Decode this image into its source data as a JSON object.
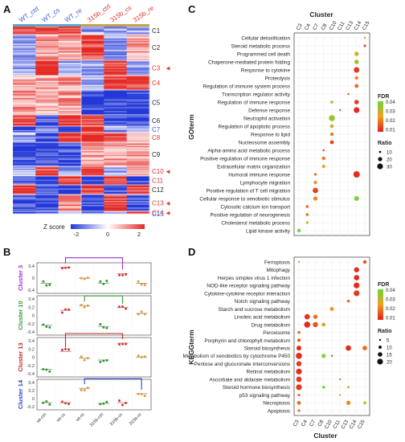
{
  "panels": {
    "A": {
      "letter": "A",
      "samples": [
        {
          "label": "WT_ctrl",
          "color": "#3b56d6"
        },
        {
          "label": "WT_cs",
          "color": "#3b56d6"
        },
        {
          "label": "WT_re",
          "color": "#3b56d6"
        },
        {
          "label": "315b_ctrl",
          "color": "#e5322d"
        },
        {
          "label": "315b_cs",
          "color": "#e5322d"
        },
        {
          "label": "315b_re",
          "color": "#e5322d"
        }
      ],
      "clusters": [
        {
          "label": "C1",
          "color": "#222222"
        },
        {
          "label": "C2",
          "color": "#222222"
        },
        {
          "label": "C3",
          "color": "#e5322d"
        },
        {
          "label": "C4",
          "color": "#e5322d"
        },
        {
          "label": "C5",
          "color": "#222222"
        },
        {
          "label": "C6",
          "color": "#222222"
        },
        {
          "label": "C7",
          "color": "#3b56d6"
        },
        {
          "label": "C8",
          "color": "#e5322d"
        },
        {
          "label": "C9",
          "color": "#222222"
        },
        {
          "label": "C10",
          "color": "#e5322d"
        },
        {
          "label": "C11",
          "color": "#e5322d"
        },
        {
          "label": "C12",
          "color": "#222222"
        },
        {
          "label": "C13",
          "color": "#e5322d"
        },
        {
          "label": "C14",
          "color": "#e5322d"
        },
        {
          "label": "C15",
          "color": "#3b56d6"
        }
      ],
      "colorbar": {
        "title": "Z score",
        "ticks": [
          "-2",
          "0",
          "2"
        ],
        "low": "#2338d8",
        "mid": "#ffffff",
        "high": "#e52a24"
      }
    },
    "B": {
      "letter": "B",
      "xticks": [
        "wt-ctrl",
        "wt-cs",
        "wt-re",
        "315b-ctrl",
        "315b-cs",
        "315b-re"
      ],
      "facets": [
        {
          "label": "Cluster 3",
          "color": "#9b30d9",
          "yticks": [
            "0.4",
            "0",
            "-0.4"
          ]
        },
        {
          "label": "Cluster 10",
          "color": "#2e9e2e",
          "yticks": [
            "0.4",
            "0.2",
            "0",
            "-0.2",
            "-0.4"
          ]
        },
        {
          "label": "Cluster 13",
          "color": "#c0281c",
          "yticks": [
            "0.4",
            "0.2",
            "0",
            "-0.2",
            "-0.4"
          ]
        },
        {
          "label": "Cluster 14",
          "color": "#2b3fcc",
          "yticks": [
            "0.4",
            "0.2",
            "0",
            "-0.2"
          ]
        }
      ],
      "legend_colors": [
        "#2e9e2e",
        "#e5322d",
        "#e59a2d",
        "#2e9e2e",
        "#e5322d",
        "#e59a2d"
      ]
    },
    "C": {
      "letter": "C",
      "title": "Cluster",
      "ylabel": "GOterm",
      "clusters": [
        "C3",
        "C4",
        "C7",
        "C8",
        "C10",
        "C11",
        "C13",
        "C14",
        "C15"
      ],
      "terms": [
        "Cellular detoxification",
        "Steroid metabolic process",
        "Programmed cell death",
        "Chaperone-mediated protein folding",
        "Response to cytokine",
        "Proteolysis",
        "Regulation of immune system process",
        "Transcription regulator activity",
        "Regulation of immune response",
        "Defense response",
        "Neutrophil activation",
        "Regulation of apoptotic process",
        "Response to lipid",
        "Nucleosome assembly",
        "Alpha-amino acid metabolic process",
        "Positive regulation of immune response",
        "Extracellular matrix organization",
        "Humoral immune response",
        "Lymphocyte migration",
        "Positive regulation of T cell migration",
        "Cellular response to xenobiotic stimulus",
        "Cytosolic calcium ion transport",
        "Positive regulation of neurogenesis",
        "Cholesterol metabolic process",
        "Lipid kinase activity"
      ],
      "legend_fdr": {
        "title": "FDR",
        "ticks": [
          "0.04",
          "0.03",
          "0.02",
          "0.01"
        ]
      },
      "legend_ratio": {
        "title": "Ratio",
        "ticks": [
          "10",
          "20",
          "30"
        ]
      }
    },
    "D": {
      "letter": "D",
      "xlabel": "Cluster",
      "ylabel": "KEGGterm",
      "clusters": [
        "C3",
        "C4",
        "C7",
        "C8",
        "C10",
        "C11",
        "C13",
        "C14",
        "C15"
      ],
      "terms": [
        "Ferroptosis",
        "Mitophagy",
        "Herpes simplex virus 1 infection",
        "NOD-like receptor signaling pathway",
        "Cytokine-cytokine receptor interaction",
        "Notch signaling pathway",
        "Starch and sucrose metabolism",
        "Linoleic acid metabolism",
        "Drug metabolism",
        "Peroxisome",
        "Porphyrin and chlorophyll metabolism",
        "Steroid biosynthesis",
        "Metabolism of xenobiotics by cytochrome P450",
        "Pentose and glucuronate interconversions",
        "Retinol metabolism",
        "Ascorbate and aldarate metabolism",
        "Steroid hormone biosynthesis",
        "p53 signaling pathway",
        "Necroptosis",
        "Apoptosis"
      ],
      "legend_fdr": {
        "title": "FDR",
        "ticks": [
          "0.04",
          "0.03",
          "0.02",
          "0.01"
        ]
      },
      "legend_ratio": {
        "title": "Ratio",
        "ticks": [
          "5",
          "10",
          "15",
          "20"
        ]
      }
    }
  },
  "colors": {
    "fdr_low": "#e21e1e",
    "fdr_mid": "#f0a020",
    "fdr_high": "#6ad63a"
  }
}
